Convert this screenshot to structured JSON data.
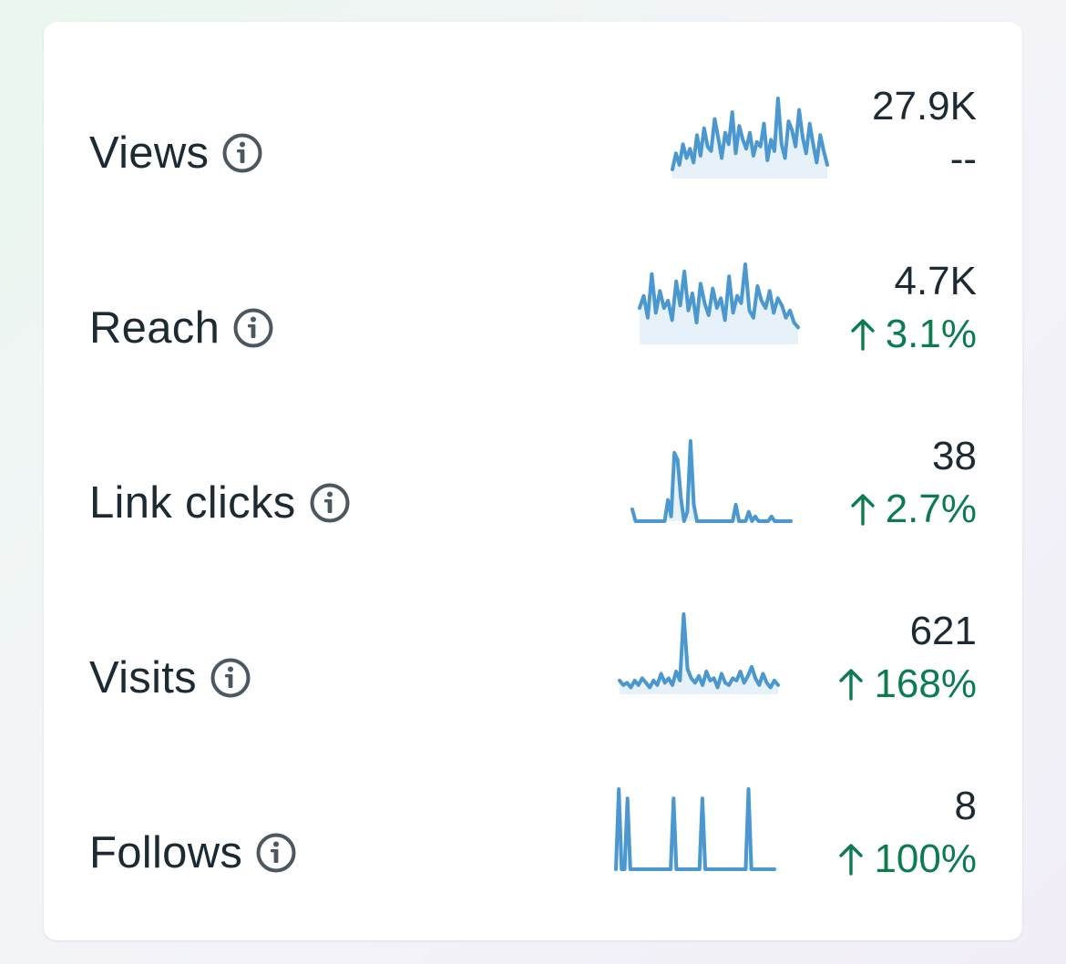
{
  "colors": {
    "sparkline": "#4a98cf",
    "sparkline_fill": "#e6f1f9",
    "positive": "#0a7c4e",
    "text": "#1c2b33",
    "icon": "#4b5861"
  },
  "metrics": [
    {
      "label": "Views",
      "value": "27.9K",
      "change": "--",
      "direction": "none",
      "sparkline": [
        8,
        22,
        12,
        30,
        18,
        26,
        14,
        38,
        20,
        44,
        28,
        24,
        52,
        36,
        18,
        40,
        30,
        58,
        22,
        46,
        34,
        26,
        40,
        20,
        32,
        28,
        48,
        16,
        34,
        24,
        70,
        30,
        18,
        50,
        42,
        28,
        60,
        36,
        22,
        48,
        30,
        14,
        38,
        24,
        12
      ]
    },
    {
      "label": "Reach",
      "value": "4.7K",
      "change": "3.1%",
      "direction": "up",
      "sparkline": [
        30,
        40,
        22,
        58,
        26,
        44,
        30,
        36,
        20,
        52,
        32,
        60,
        28,
        42,
        18,
        50,
        34,
        24,
        46,
        30,
        38,
        20,
        56,
        26,
        40,
        34,
        66,
        28,
        22,
        48,
        36,
        30,
        44,
        26,
        38,
        32,
        22,
        28,
        18,
        14
      ]
    },
    {
      "label": "Link clicks",
      "value": "38",
      "change": "2.7%",
      "direction": "up",
      "sparkline": [
        10,
        0,
        0,
        0,
        0,
        0,
        0,
        0,
        0,
        0,
        0,
        18,
        4,
        58,
        52,
        20,
        0,
        8,
        68,
        14,
        0,
        0,
        0,
        0,
        0,
        0,
        0,
        0,
        0,
        0,
        0,
        0,
        14,
        0,
        0,
        0,
        8,
        0,
        4,
        0,
        0,
        0,
        0,
        4,
        0,
        0,
        0,
        0,
        0,
        0
      ]
    },
    {
      "label": "Visits",
      "value": "621",
      "change": "168%",
      "direction": "up",
      "sparkline": [
        12,
        8,
        10,
        6,
        12,
        8,
        14,
        10,
        6,
        12,
        8,
        18,
        10,
        14,
        8,
        20,
        12,
        70,
        22,
        14,
        10,
        16,
        8,
        20,
        12,
        14,
        6,
        18,
        10,
        8,
        14,
        12,
        20,
        10,
        16,
        24,
        14,
        8,
        18,
        10,
        6,
        12,
        8
      ]
    },
    {
      "label": "Follows",
      "value": "8",
      "change": "100%",
      "direction": "up",
      "sparkline": [
        0,
        86,
        0,
        0,
        76,
        0,
        0,
        0,
        0,
        0,
        0,
        0,
        0,
        0,
        0,
        0,
        0,
        0,
        0,
        0,
        76,
        0,
        0,
        0,
        0,
        0,
        0,
        0,
        0,
        0,
        76,
        0,
        0,
        0,
        0,
        0,
        0,
        0,
        0,
        0,
        0,
        0,
        0,
        0,
        0,
        0,
        86,
        0,
        0,
        0,
        0,
        0,
        0,
        0,
        0,
        0
      ]
    }
  ]
}
